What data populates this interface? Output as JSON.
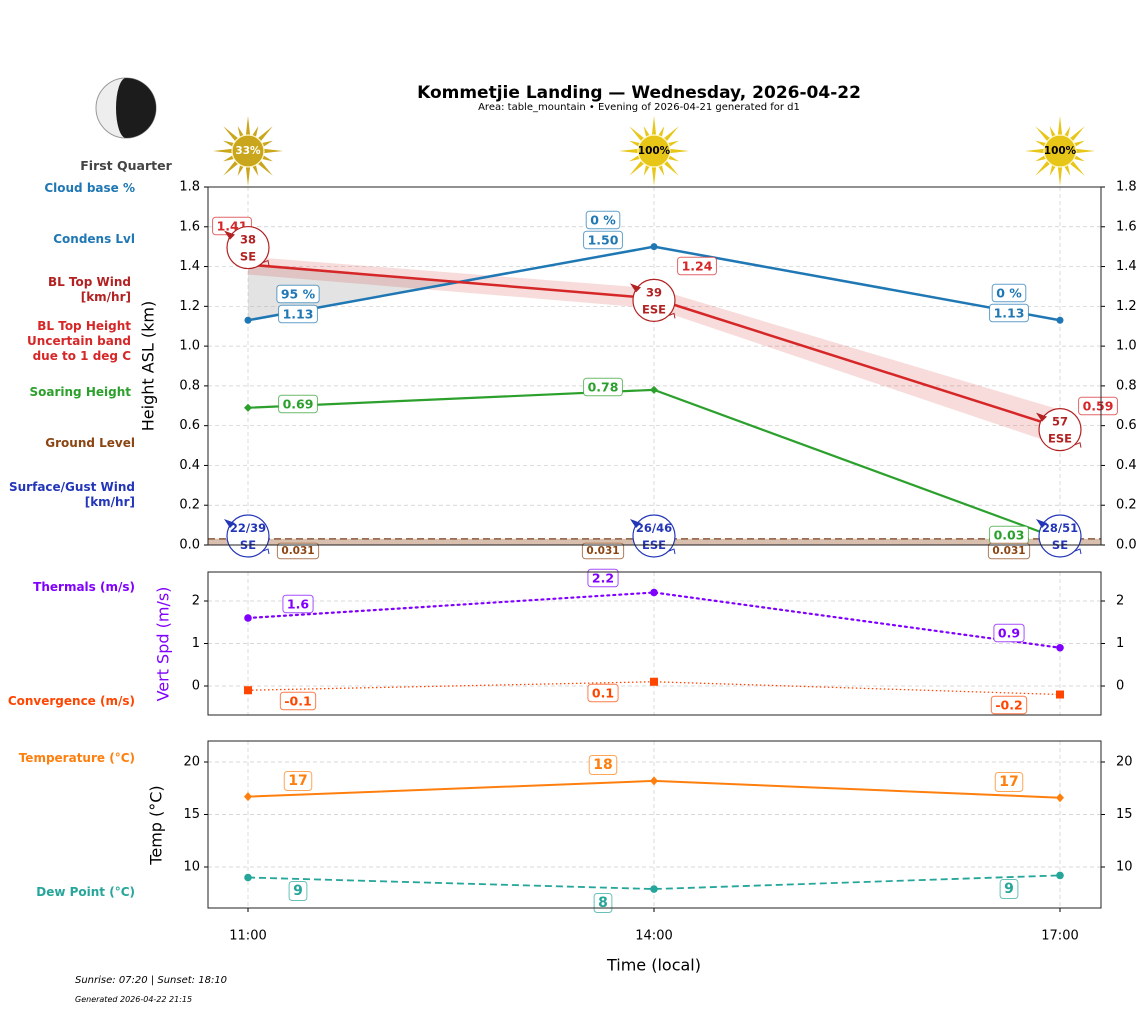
{
  "title": "Kommetjie Landing — Wednesday, 2026-04-22",
  "subtitle": "Area: table_mountain • Evening of 2026-04-21 generated for d1",
  "moon": {
    "phase": "First Quarter",
    "icon": "first-quarter-moon-icon"
  },
  "left_labels": {
    "cloud_base": "Cloud base %",
    "condens": "Condens Lvl",
    "bl_wind": "BL Top Wind\n[km/hr]",
    "bl_height": "BL Top Height\nUncertain band\ndue to 1 deg C",
    "soaring": "Soaring Height",
    "ground": "Ground Level",
    "surface_wind": "Surface/Gust Wind\n[km/hr]",
    "thermals": "Thermals (m/s)",
    "convergence": "Convergence (m/s)",
    "temperature": "Temperature (°C)",
    "dew_point": "Dew Point (°C)"
  },
  "footer": {
    "sun": "Sunrise: 07:20 | Sunset: 18:10",
    "generated": "Generated 2026-04-22 21:15"
  },
  "colors": {
    "condens": "#1f77b4",
    "bl_top": "#d62728",
    "bl_wind": "#b22222",
    "soaring": "#2ca02c",
    "ground": "#8b4513",
    "surface_wind": "#2336b8",
    "thermals": "#8000ff",
    "convergence": "#ff4500",
    "temperature": "#ff7f0e",
    "dew_point": "#26a69a",
    "sun_partial": "#c9a61c",
    "sun_full": "#e8c617"
  },
  "chart_data": [
    {
      "type": "line",
      "panel": "height",
      "x": [
        "11:00",
        "14:00",
        "17:00"
      ],
      "xlabel": "Time (local)",
      "ylabel": "Height ASL (km)",
      "ylim": [
        0,
        1.8
      ],
      "yticks": [
        "0.0",
        "0.2",
        "0.4",
        "0.6",
        "0.8",
        "1.0",
        "1.2",
        "1.4",
        "1.6",
        "1.8"
      ],
      "grid": true,
      "sun_percent": [
        "33%",
        "100%",
        "100%"
      ],
      "condens": {
        "name": "Condens Lvl",
        "values": [
          1.13,
          1.5,
          1.13
        ],
        "labels": [
          "1.13",
          "1.50",
          "1.13"
        ]
      },
      "cloud_base": {
        "name": "Cloud base %",
        "labels": [
          "95 %",
          "0 %",
          "0 %"
        ]
      },
      "bl_top": {
        "name": "BL Top Height",
        "values": [
          1.41,
          1.24,
          0.59
        ],
        "labels": [
          "1.41",
          "1.24",
          "0.59"
        ],
        "band": [
          [
            1.36,
            1.45
          ],
          [
            1.19,
            1.29
          ],
          [
            0.5,
            0.68
          ]
        ]
      },
      "bl_wind": {
        "speed": [
          "38",
          "39",
          "57"
        ],
        "dir": [
          "SE",
          "ESE",
          "ESE"
        ]
      },
      "soaring": {
        "name": "Soaring Height",
        "values": [
          0.69,
          0.78,
          0.03
        ],
        "labels": [
          "0.69",
          "0.78",
          "0.03"
        ]
      },
      "ground": {
        "name": "Ground Level",
        "values": [
          0.031,
          0.031,
          0.031
        ],
        "labels": [
          "0.031",
          "0.031",
          "0.031"
        ]
      },
      "surface_wind": {
        "speed": [
          "22/39",
          "26/46",
          "28/51"
        ],
        "dir": [
          "SE",
          "ESE",
          "SE"
        ]
      }
    },
    {
      "type": "line",
      "panel": "vertical-speed",
      "ylabel": "Vert Spd (m/s)",
      "ylim": [
        -0.68,
        2.68
      ],
      "yticks": [
        "0",
        "1",
        "2"
      ],
      "grid": true,
      "thermals": {
        "name": "Thermals (m/s)",
        "values": [
          1.6,
          2.2,
          0.9
        ],
        "labels": [
          "1.6",
          "2.2",
          "0.9"
        ]
      },
      "convergence": {
        "name": "Convergence (m/s)",
        "values": [
          -0.1,
          0.1,
          -0.2
        ],
        "labels": [
          "-0.1",
          "0.1",
          "-0.2"
        ]
      }
    },
    {
      "type": "line",
      "panel": "temperature",
      "ylabel": "Temp (°C)",
      "ylim": [
        6.1,
        22.0
      ],
      "yticks": [
        "10",
        "15",
        "20"
      ],
      "grid": true,
      "temperature": {
        "name": "Temperature (°C)",
        "values": [
          16.7,
          18.2,
          16.6
        ],
        "labels": [
          "17",
          "18",
          "17"
        ]
      },
      "dew_point": {
        "name": "Dew Point (°C)",
        "values": [
          9.0,
          7.9,
          9.2
        ],
        "labels": [
          "9",
          "8",
          "9"
        ]
      }
    }
  ]
}
